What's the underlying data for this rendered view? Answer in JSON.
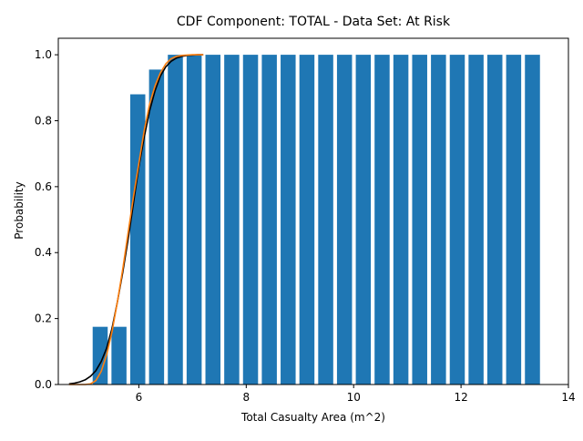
{
  "chart_data": {
    "type": "bar",
    "title": "CDF Component: TOTAL - Data Set: At Risk",
    "xlabel": "Total Casualty Area (m^2)",
    "ylabel": "Probability",
    "xlim": [
      4.5,
      14.0
    ],
    "ylim": [
      0.0,
      1.05
    ],
    "xticks": [
      6,
      8,
      10,
      12,
      14
    ],
    "yticks": [
      0.0,
      0.2,
      0.4,
      0.6,
      0.8,
      1.0
    ],
    "xtick_labels": [
      "6",
      "8",
      "10",
      "12",
      "14"
    ],
    "ytick_labels": [
      "0.0",
      "0.2",
      "0.4",
      "0.6",
      "0.8",
      "1.0"
    ],
    "grid": false,
    "bar_color": "#1f77b4",
    "bar_width": 0.28,
    "bars": {
      "x": [
        5.28,
        5.63,
        5.98,
        6.33,
        6.68,
        7.03,
        7.38,
        7.73,
        8.08,
        8.43,
        8.78,
        9.13,
        9.48,
        9.83,
        10.18,
        10.53,
        10.88,
        11.23,
        11.58,
        11.93,
        12.28,
        12.63,
        12.98,
        13.33
      ],
      "values": [
        0.175,
        0.175,
        0.88,
        0.955,
        1.0,
        1.0,
        1.0,
        1.0,
        1.0,
        1.0,
        1.0,
        1.0,
        1.0,
        1.0,
        1.0,
        1.0,
        1.0,
        1.0,
        1.0,
        1.0,
        1.0,
        1.0,
        1.0,
        1.0
      ]
    },
    "series": [
      {
        "color": "#000000",
        "x": [
          4.7,
          4.8,
          4.9,
          5.0,
          5.1,
          5.2,
          5.3,
          5.4,
          5.5,
          5.6,
          5.7,
          5.8,
          5.9,
          6.0,
          6.1,
          6.2,
          6.3,
          6.4,
          6.5,
          6.6,
          6.7,
          6.8,
          6.9,
          7.0,
          7.1,
          7.2
        ],
        "values": [
          0.002,
          0.004,
          0.008,
          0.014,
          0.025,
          0.042,
          0.07,
          0.11,
          0.17,
          0.25,
          0.34,
          0.44,
          0.55,
          0.66,
          0.75,
          0.83,
          0.89,
          0.935,
          0.963,
          0.98,
          0.99,
          0.995,
          0.998,
          0.999,
          1.0,
          1.0
        ]
      },
      {
        "color": "#ff7f0e",
        "x": [
          4.7,
          4.8,
          4.9,
          5.0,
          5.1,
          5.2,
          5.3,
          5.4,
          5.5,
          5.6,
          5.7,
          5.8,
          5.9,
          6.0,
          6.1,
          6.2,
          6.3,
          6.4,
          6.5,
          6.6,
          6.7,
          6.8,
          6.9,
          7.0,
          7.1,
          7.2
        ],
        "values": [
          0.0,
          0.0,
          0.0,
          0.0,
          0.002,
          0.012,
          0.04,
          0.09,
          0.16,
          0.25,
          0.35,
          0.46,
          0.57,
          0.67,
          0.77,
          0.85,
          0.905,
          0.945,
          0.972,
          0.988,
          0.995,
          0.998,
          0.999,
          1.0,
          1.0,
          1.0
        ]
      }
    ]
  }
}
